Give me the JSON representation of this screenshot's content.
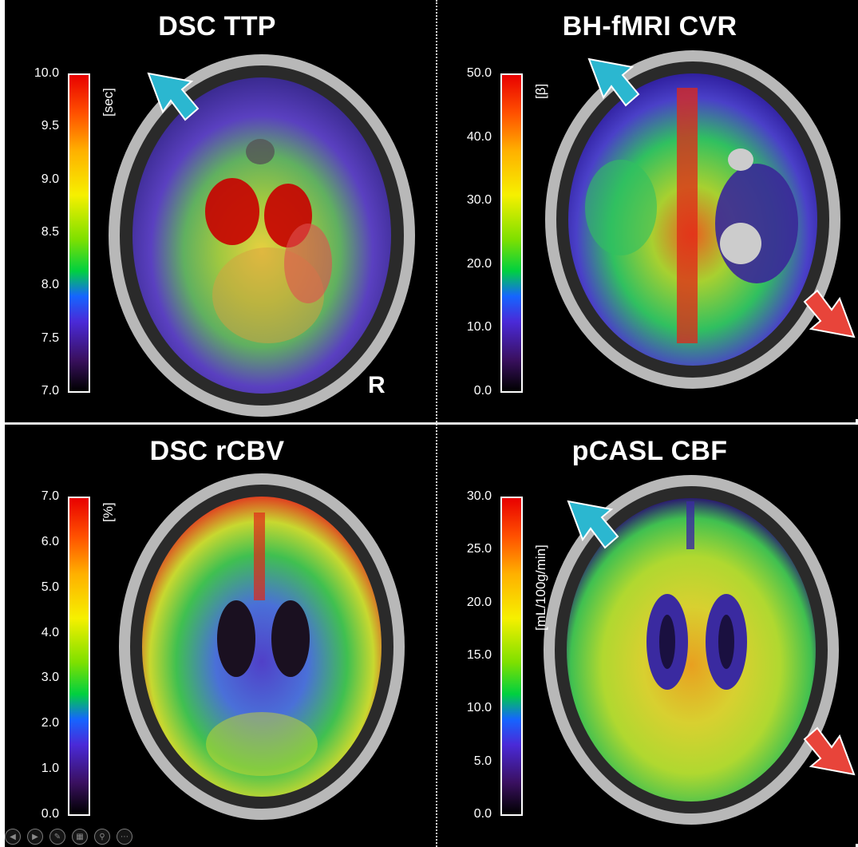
{
  "panels": [
    {
      "title": "DSC TTP",
      "unit": "[sec]",
      "ticks": [
        "10.0",
        "9.5",
        "9.0",
        "8.5",
        "8.0",
        "7.5",
        "7.0"
      ],
      "side_label": "R",
      "arrows": [
        "cyan-arrow-upper-left"
      ]
    },
    {
      "title": "BH-fMRI CVR",
      "unit": "[β]",
      "ticks": [
        "50.0",
        "40.0",
        "30.0",
        "20.0",
        "10.0",
        "0.0"
      ],
      "arrows": [
        "cyan-arrow-upper-left",
        "red-arrow-lower-right"
      ]
    },
    {
      "title": "DSC rCBV",
      "unit": "[%]",
      "ticks": [
        "7.0",
        "6.0",
        "5.0",
        "4.0",
        "3.0",
        "2.0",
        "1.0",
        "0.0"
      ],
      "arrows": []
    },
    {
      "title": "pCASL CBF",
      "unit": "[mL/100g/min]",
      "ticks": [
        "30.0",
        "25.0",
        "20.0",
        "15.0",
        "10.0",
        "5.0",
        "0.0"
      ],
      "arrows": [
        "cyan-arrow-upper-left",
        "red-arrow-lower-right"
      ]
    }
  ],
  "colorscale": [
    "#000000",
    "#3a1060",
    "#4a2ad8",
    "#1565ff",
    "#00d040",
    "#7ee000",
    "#f6f000",
    "#ffb000",
    "#ff5000",
    "#e80000"
  ],
  "arrow_colors": {
    "cyan": "#2bb7d0",
    "red": "#e8443a"
  },
  "toolbar": [
    "back-icon",
    "play-icon",
    "pen-icon",
    "slides-icon",
    "zoom-icon",
    "more-icon"
  ]
}
